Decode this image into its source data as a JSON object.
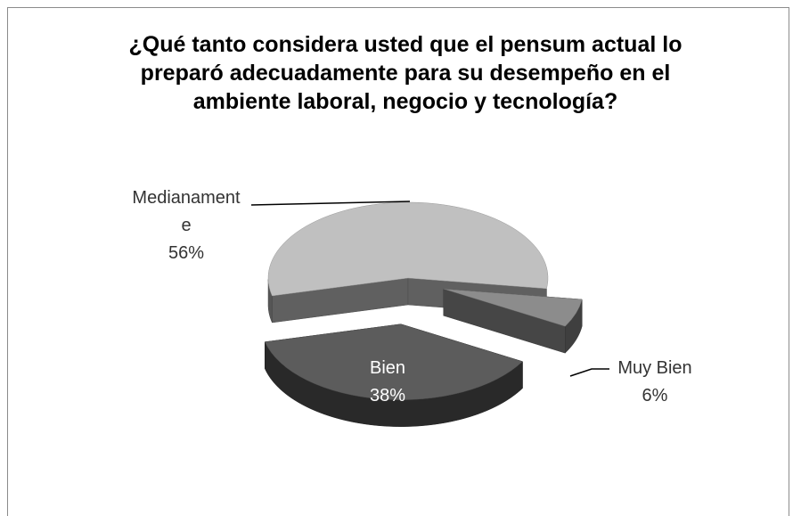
{
  "chart_data": {
    "type": "pie",
    "title": "¿Qué tanto considera usted que el pensum actual lo preparó adecuadamente para su desempeño en el ambiente laboral, negocio y tecnología?",
    "categories": [
      "Medianamente",
      "Muy Bien",
      "Bien"
    ],
    "values": [
      56,
      6,
      38
    ],
    "value_labels": [
      "56%",
      "6%",
      "38%"
    ],
    "colors": [
      "#c0c0c0",
      "#8c8c8c",
      "#5c5c5c"
    ]
  }
}
